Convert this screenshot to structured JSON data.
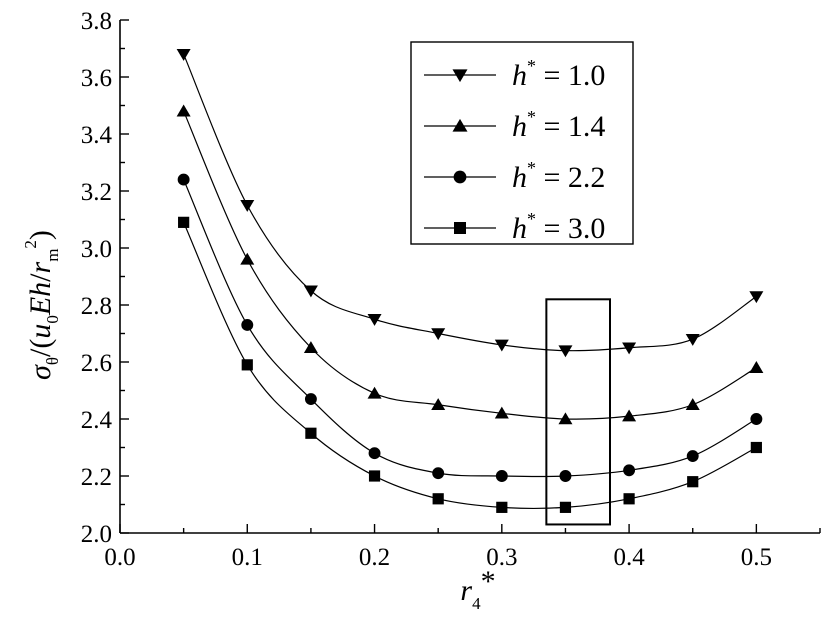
{
  "chart_data": {
    "type": "line",
    "xlabel": {
      "main": "r",
      "sub": "4",
      "sup": "*"
    },
    "ylabel": {
      "sigma": "σ",
      "theta": "θ",
      "open": "/(",
      "u": "u",
      "u_sub": "0",
      "Eh": "Eh",
      "slash": "/",
      "r": "r",
      "r_sub": "m",
      "r_sup": "2",
      "close": ")"
    },
    "xlim": [
      0.0,
      0.55
    ],
    "ylim": [
      2.0,
      3.8
    ],
    "x_ticks": [
      "0.0",
      "0.1",
      "0.2",
      "0.3",
      "0.4",
      "0.5"
    ],
    "y_ticks": [
      "2.0",
      "2.2",
      "2.4",
      "2.6",
      "2.8",
      "3.0",
      "3.2",
      "3.4",
      "3.6",
      "3.8"
    ],
    "grid": false,
    "legend_position": "top-right",
    "x": [
      0.05,
      0.1,
      0.15,
      0.2,
      0.25,
      0.3,
      0.35,
      0.4,
      0.45,
      0.5
    ],
    "series": [
      {
        "name": "h* = 1.0",
        "sym": "h",
        "sup": "*",
        "value": "= 1.0",
        "marker": "triangle-down",
        "values": [
          3.68,
          3.15,
          2.85,
          2.75,
          2.7,
          2.66,
          2.64,
          2.65,
          2.68,
          2.83
        ]
      },
      {
        "name": "h* = 1.4",
        "sym": "h",
        "sup": "*",
        "value": "= 1.4",
        "marker": "triangle-up",
        "values": [
          3.48,
          2.96,
          2.65,
          2.49,
          2.45,
          2.42,
          2.4,
          2.41,
          2.45,
          2.58
        ]
      },
      {
        "name": "h* = 2.2",
        "sym": "h",
        "sup": "*",
        "value": "= 2.2",
        "marker": "circle",
        "values": [
          3.24,
          2.73,
          2.47,
          2.28,
          2.21,
          2.2,
          2.2,
          2.22,
          2.27,
          2.4
        ]
      },
      {
        "name": "h* = 3.0",
        "sym": "h",
        "sup": "*",
        "value": "= 3.0",
        "marker": "square",
        "values": [
          3.09,
          2.59,
          2.35,
          2.2,
          2.12,
          2.09,
          2.09,
          2.12,
          2.18,
          2.3
        ]
      }
    ],
    "highlight_region": {
      "x_range": [
        0.335,
        0.385
      ],
      "y_range": [
        2.03,
        2.82
      ]
    }
  }
}
